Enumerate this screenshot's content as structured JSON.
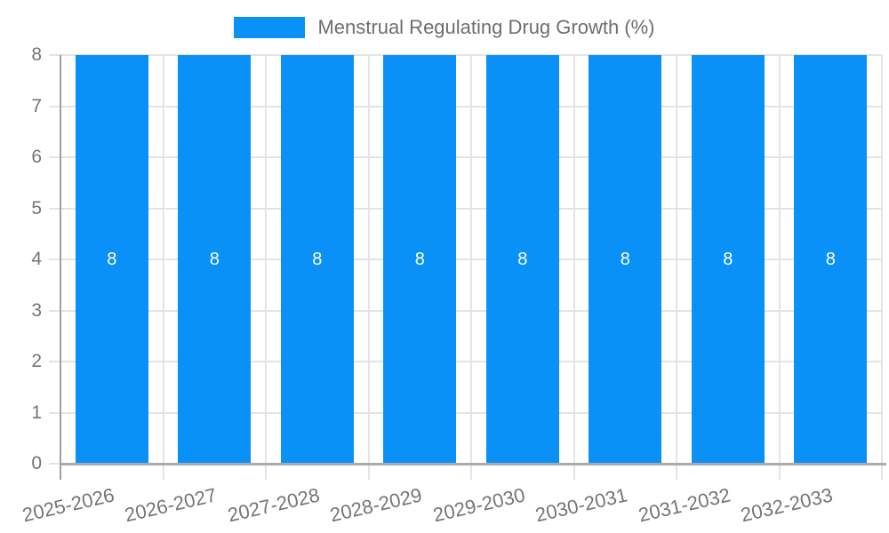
{
  "chart_data": {
    "type": "bar",
    "legend": "Menstrual Regulating Drug Growth (%)",
    "categories": [
      "2025-2026",
      "2026-2027",
      "2027-2028",
      "2028-2029",
      "2029-2030",
      "2030-2031",
      "2031-2032",
      "2032-2033"
    ],
    "values": [
      8,
      8,
      8,
      8,
      8,
      8,
      8,
      8
    ],
    "value_labels": [
      "8",
      "8",
      "8",
      "8",
      "8",
      "8",
      "8",
      "8"
    ],
    "y_ticks": [
      0,
      1,
      2,
      3,
      4,
      5,
      6,
      7,
      8
    ],
    "ylim": [
      0,
      8
    ],
    "xlabel": "",
    "ylabel": "",
    "title": "",
    "grid": true,
    "legend_position": "top-center",
    "colors": {
      "bar": "#0a91f7",
      "axis_text": "#757575",
      "legend_text": "#6e6e6e",
      "value_text": "#ffffff",
      "gridline": "#e4e4e4",
      "axis_line": "#a0a0a0",
      "baseline": "#ababab",
      "background": "#ffffff"
    }
  }
}
